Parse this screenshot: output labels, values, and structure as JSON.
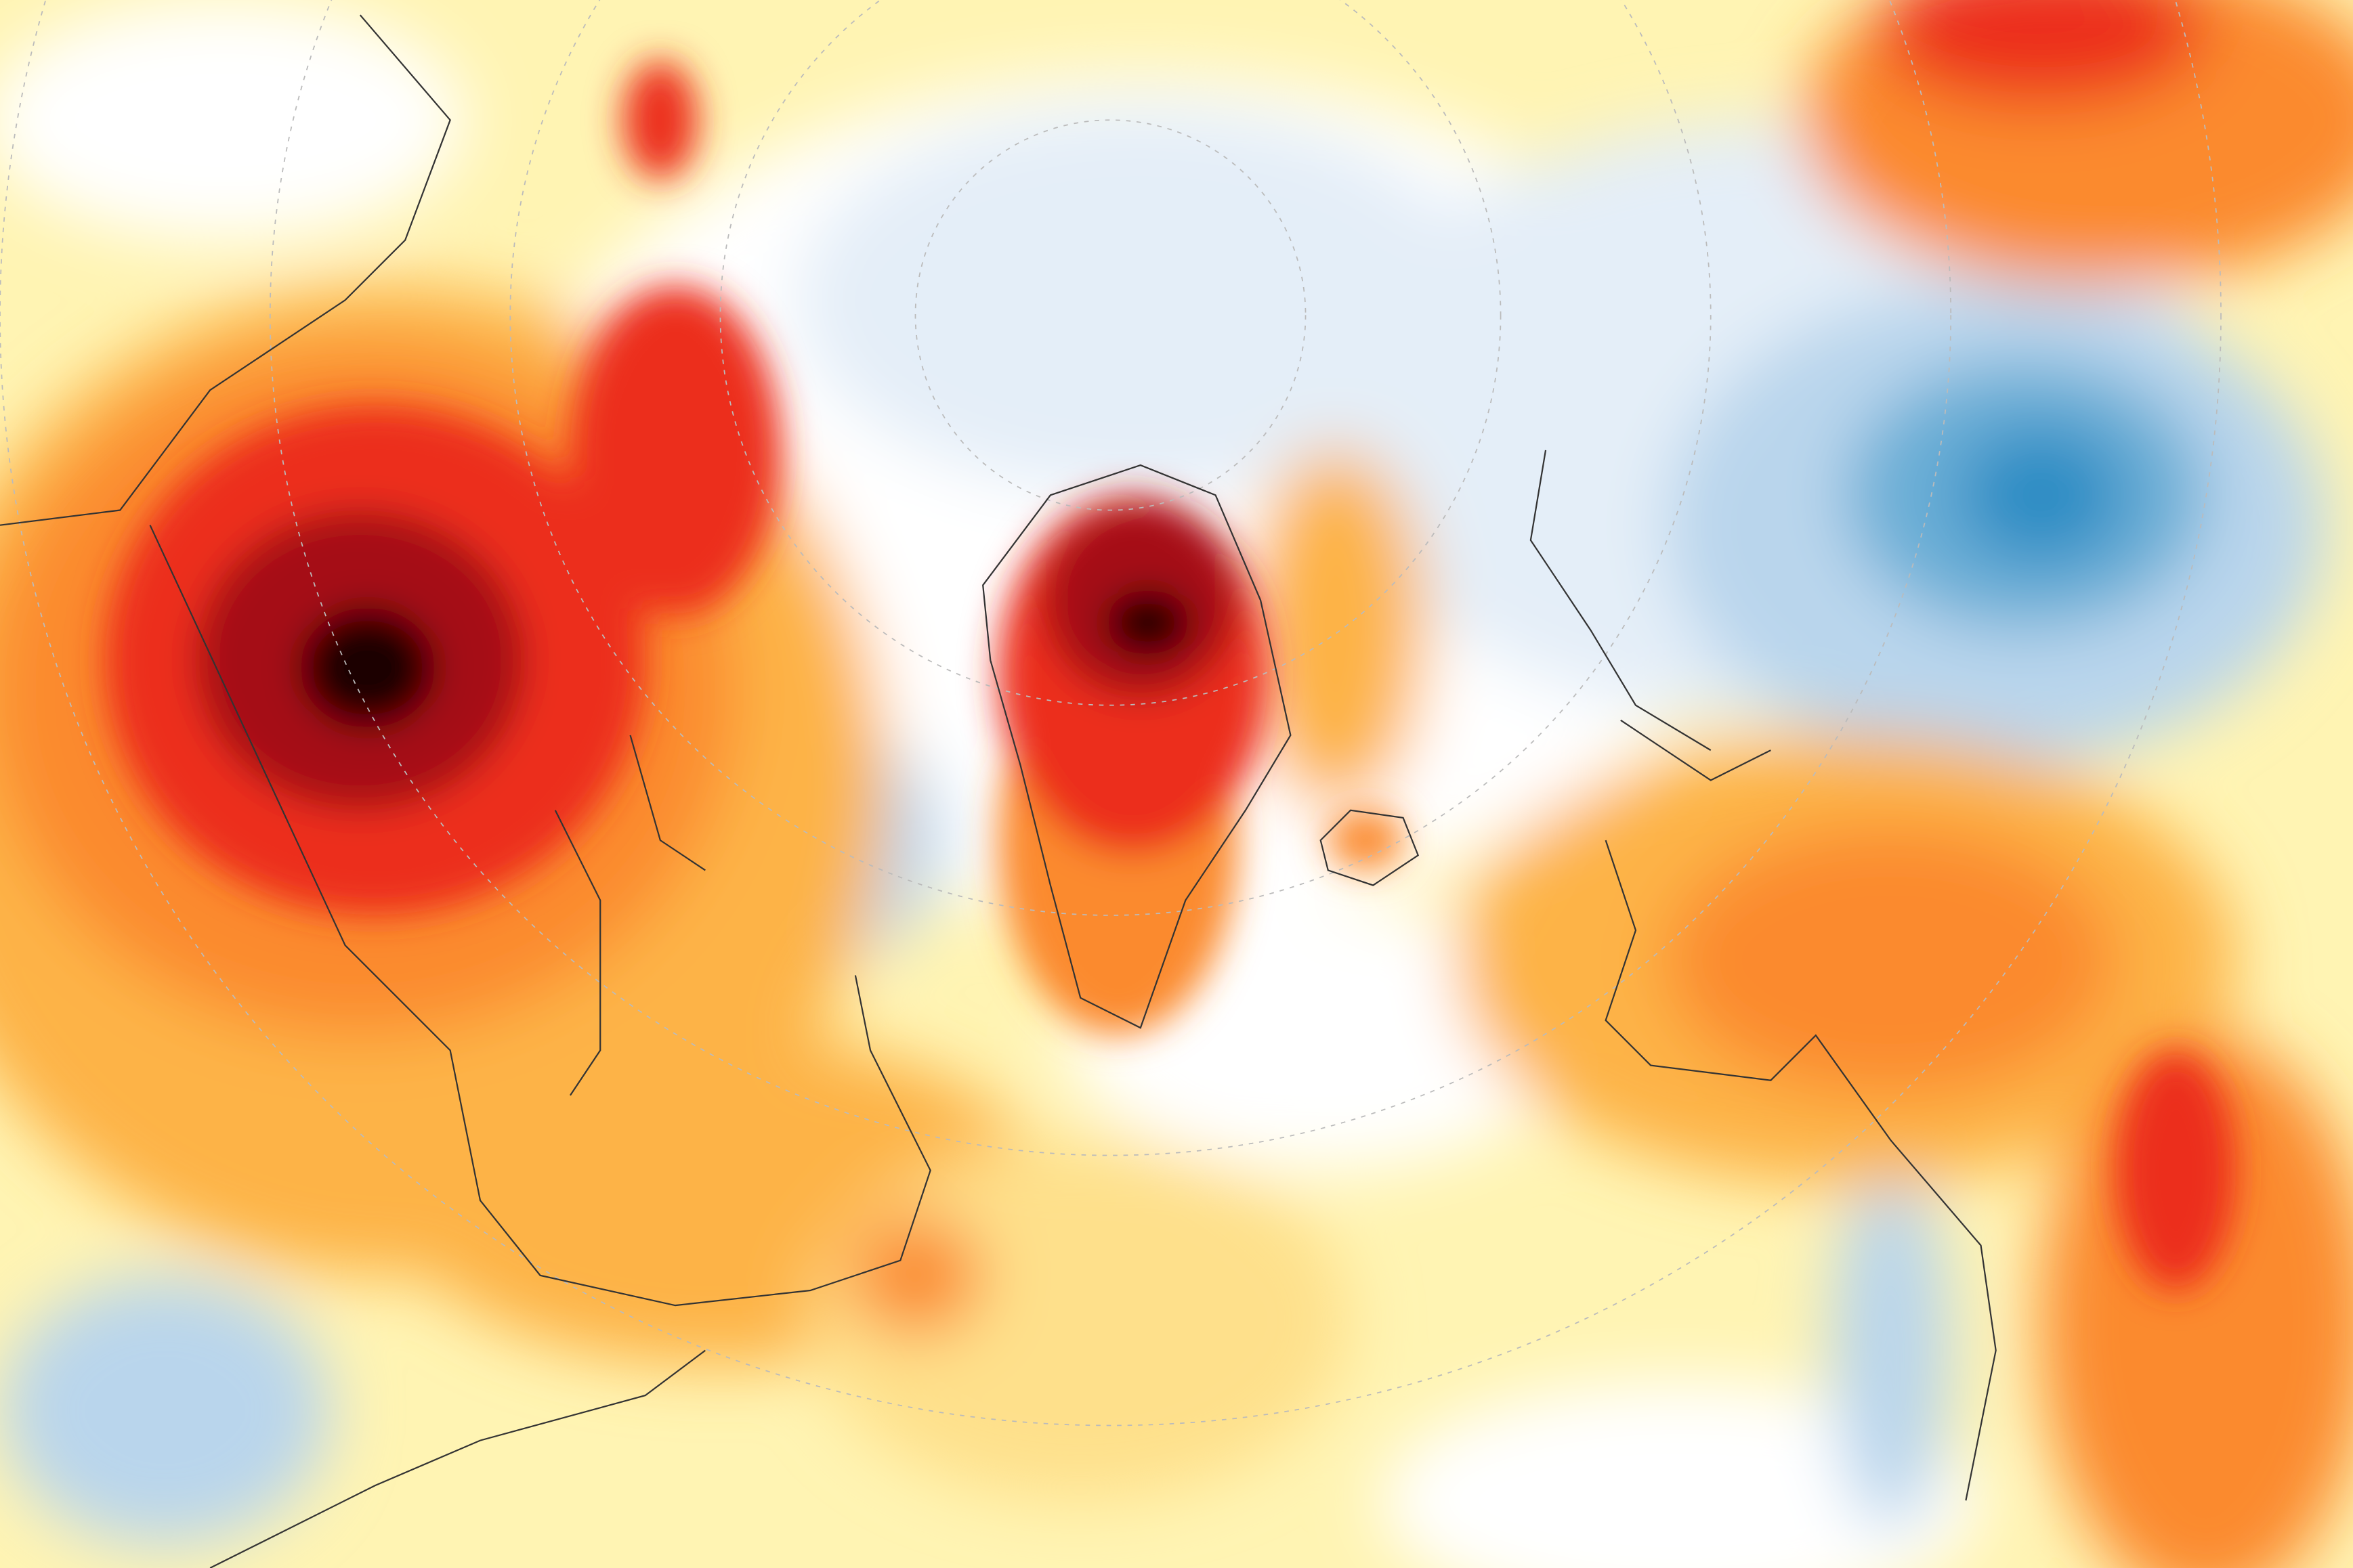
{
  "map": {
    "type": "temperature-anomaly",
    "projection": "polar-stereographic",
    "colors": {
      "background": "#fff4b3",
      "neutral": "#ffffff",
      "cool_light": "#e4eef8",
      "cool_mid": "#b9d5ec",
      "cool_strong": "#6baed6",
      "cool_core": "#2b8cc4",
      "warm_light": "#fee08b",
      "warm_mid": "#fdb347",
      "warm_orange": "#fb8a2e",
      "warm_red": "#ec2f1c",
      "warm_dark": "#a50f15",
      "warm_core": "#1a0000",
      "coastline": "#333333",
      "graticule": "#bbbbbb"
    }
  }
}
